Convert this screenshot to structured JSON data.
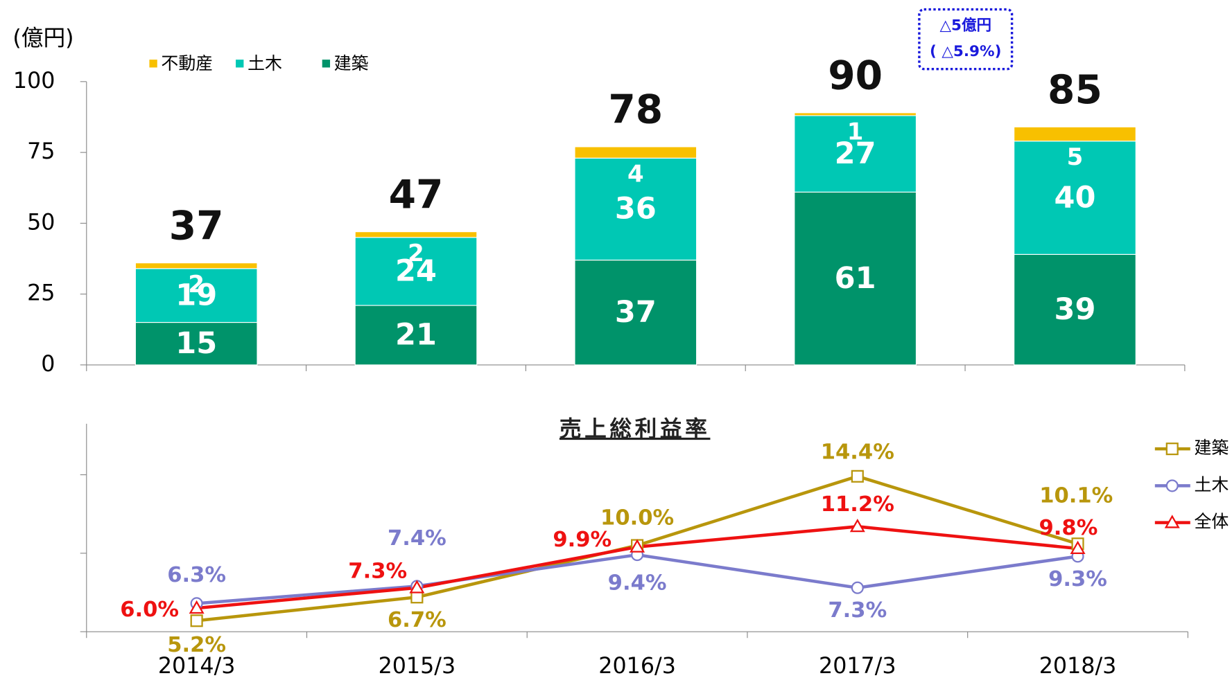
{
  "chart_data": [
    {
      "type": "stacked-bar",
      "ylabel": "(億円)",
      "ylim": [
        0,
        100
      ],
      "yticks": [
        0,
        25,
        50,
        75,
        100
      ],
      "legend": "top",
      "series": [
        {
          "name": "建築",
          "color": "#00936a",
          "values": [
            15,
            21,
            37,
            61,
            39
          ]
        },
        {
          "name": "土木",
          "color": "#00c8b4",
          "values": [
            19,
            24,
            36,
            27,
            40
          ]
        },
        {
          "name": "不動産",
          "color": "#f8c000",
          "values": [
            2,
            2,
            4,
            1,
            5
          ]
        }
      ],
      "totals": [
        37,
        47,
        78,
        90,
        85
      ],
      "annotation": [
        "△5億円",
        "( △5.9%)"
      ]
    },
    {
      "type": "line",
      "title": "売上総利益率",
      "categories": [
        "2014/3",
        "2015/3",
        "2016/3",
        "2017/3",
        "2018/3"
      ],
      "ylim": [
        4.5,
        17.75
      ],
      "yticks": [
        4.5,
        9.5,
        14.5
      ],
      "legend": "right",
      "series": [
        {
          "name": "建築",
          "color": "#b8960c",
          "marker": "square",
          "values": [
            5.2,
            6.7,
            10.0,
            14.4,
            10.1
          ],
          "value_labels": [
            "5.2%",
            "6.7%",
            "10.0%",
            "14.4%",
            "10.1%"
          ]
        },
        {
          "name": "土木",
          "color": "#7b7bcc",
          "marker": "circle",
          "values": [
            6.3,
            7.4,
            9.4,
            7.3,
            9.3
          ],
          "value_labels": [
            "6.3%",
            "7.4%",
            "9.4%",
            "7.3%",
            "9.3%"
          ]
        },
        {
          "name": "全体",
          "color": "#ee1111",
          "marker": "triangle",
          "values": [
            6.0,
            7.3,
            9.9,
            11.2,
            9.8
          ],
          "value_labels": [
            "6.0%",
            "7.3%",
            "9.9%",
            "11.2%",
            "9.8%"
          ]
        }
      ]
    }
  ]
}
